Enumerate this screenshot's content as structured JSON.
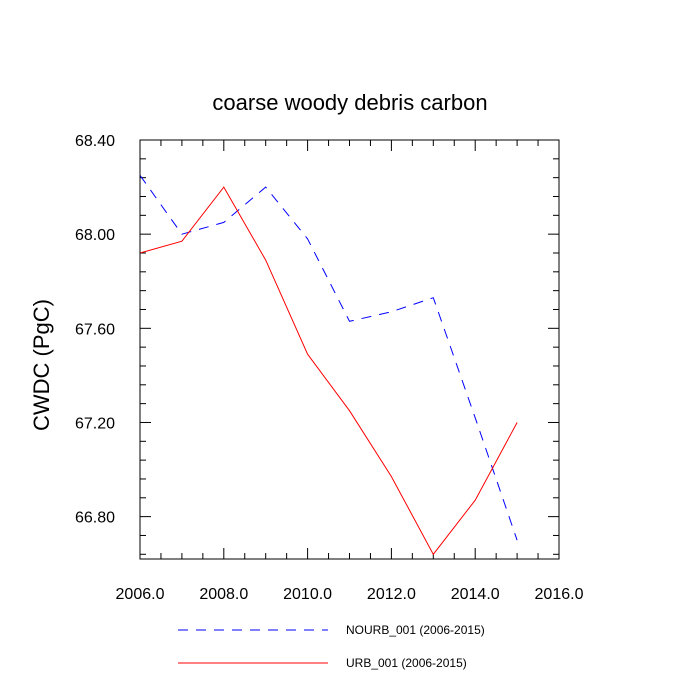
{
  "chart_data": {
    "type": "line",
    "title": "coarse woody debris carbon",
    "xlabel": "",
    "ylabel": "CWDC  (PgC)",
    "xlim": [
      2006,
      2016
    ],
    "ylim": [
      66.62,
      68.4
    ],
    "x_major_ticks": [
      2006,
      2008,
      2010,
      2012,
      2014,
      2016
    ],
    "x_tick_labels": [
      "2006.0",
      "2008.0",
      "2010.0",
      "2012.0",
      "2014.0",
      "2016.0"
    ],
    "x_minor_step": 0.5,
    "y_major_ticks": [
      66.8,
      67.2,
      67.6,
      68.0,
      68.4
    ],
    "y_tick_labels": [
      "66.80",
      "67.20",
      "67.60",
      "68.00",
      "68.40"
    ],
    "y_minor_step": 0.08,
    "grid": false,
    "legend_position": "bottom",
    "x": [
      2006,
      2007,
      2008,
      2009,
      2010,
      2011,
      2012,
      2013,
      2014,
      2015
    ],
    "series": [
      {
        "name": "NOURB_001 (2006-2015)",
        "color": "#0000ff",
        "style": "dashed",
        "values": [
          68.25,
          68.0,
          68.05,
          68.2,
          67.98,
          67.63,
          67.67,
          67.73,
          67.22,
          66.7
        ]
      },
      {
        "name": "URB_001 (2006-2015)",
        "color": "#ff0000",
        "style": "solid",
        "values": [
          67.92,
          67.97,
          68.2,
          67.89,
          67.49,
          67.25,
          66.97,
          66.64,
          66.87,
          67.2
        ]
      }
    ]
  }
}
